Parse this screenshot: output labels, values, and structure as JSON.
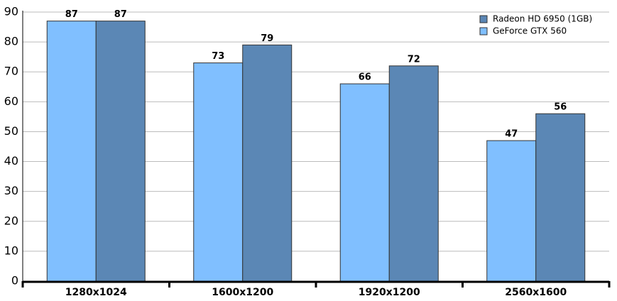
{
  "chart_data": {
    "type": "bar",
    "categories": [
      "1280x1024",
      "1600x1200",
      "1920x1200",
      "2560x1600"
    ],
    "series": [
      {
        "name": "GeForce GTX 560",
        "color": "#80bfff",
        "values": [
          87,
          73,
          66,
          47
        ]
      },
      {
        "name": "Radeon HD 6950 (1GB)",
        "color": "#5b87b5",
        "values": [
          87,
          79,
          72,
          56
        ]
      }
    ],
    "ylim": [
      0,
      90
    ],
    "yticks": [
      0,
      10,
      20,
      30,
      40,
      50,
      60,
      70,
      80,
      90
    ],
    "grid": true,
    "legend": "top-right"
  }
}
